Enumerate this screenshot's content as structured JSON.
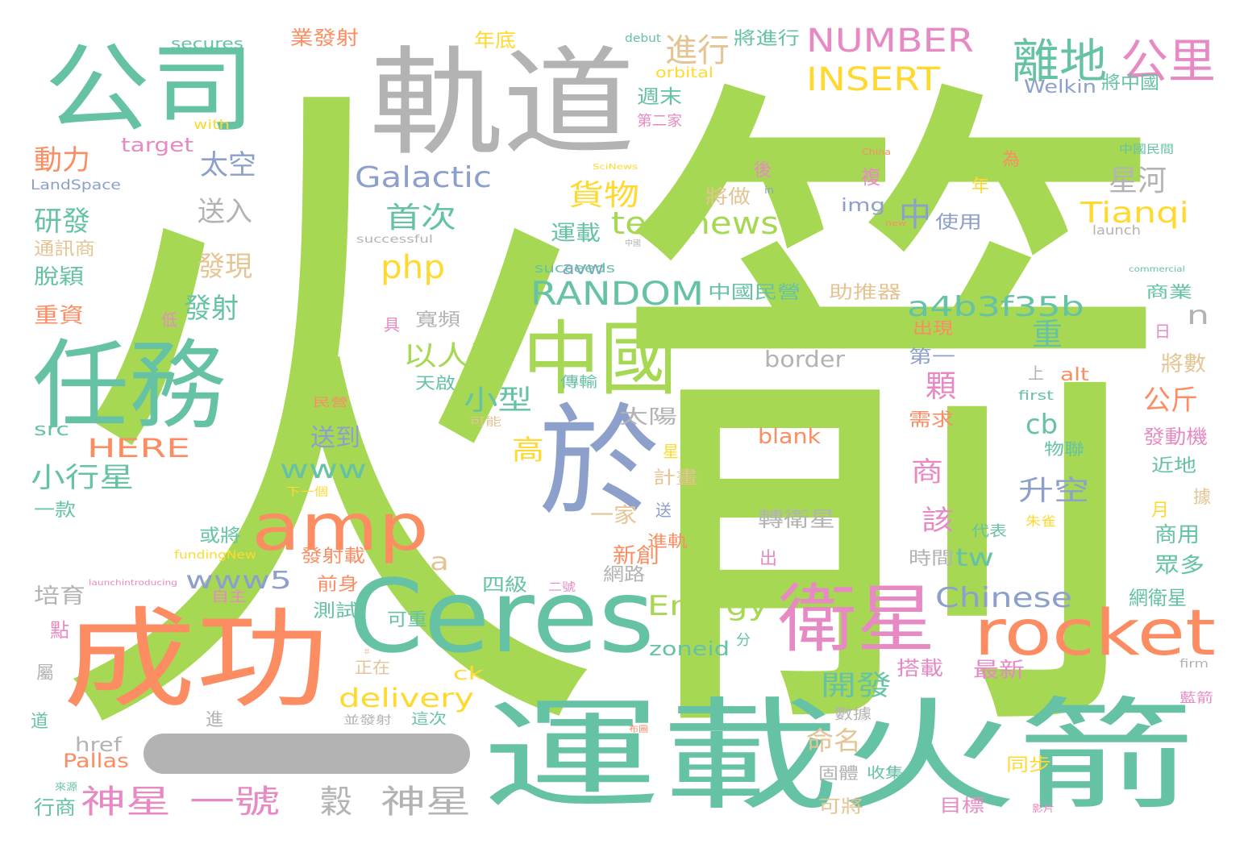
{
  "palette": {
    "green": "#a6d854",
    "teal": "#66c2a5",
    "orange": "#fc8d62",
    "blue": "#8da0cb",
    "pink": "#e78ac3",
    "yellow": "#ffd92f",
    "tan": "#e5c494",
    "gray": "#b3b3b3"
  },
  "words": [
    {
      "text": "火箭",
      "color": "green"
    },
    {
      "text": "軌道",
      "color": "gray"
    },
    {
      "text": "公司",
      "color": "teal"
    },
    {
      "text": "任務",
      "color": "teal"
    },
    {
      "text": "成功",
      "color": "orange"
    },
    {
      "text": "運載火箭",
      "color": "teal"
    },
    {
      "text": "Ceres",
      "color": "teal"
    },
    {
      "text": "於",
      "color": "blue"
    },
    {
      "text": "中國",
      "color": "green"
    },
    {
      "text": "amp",
      "color": "orange"
    },
    {
      "text": "衛星",
      "color": "pink"
    },
    {
      "text": "rocket",
      "color": "orange"
    },
    {
      "text": "離地",
      "color": "teal"
    },
    {
      "text": "公里",
      "color": "pink"
    },
    {
      "text": "NUMBER",
      "color": "pink"
    },
    {
      "text": "INSERT",
      "color": "yellow"
    },
    {
      "text": "進行",
      "color": "tan"
    },
    {
      "text": "Galactic",
      "color": "blue"
    },
    {
      "text": "technews",
      "color": "green"
    },
    {
      "text": "RANDOM",
      "color": "teal"
    },
    {
      "text": "a4b3f35b",
      "color": "teal"
    },
    {
      "text": "php",
      "color": "yellow"
    },
    {
      "text": "Tianqi",
      "color": "yellow"
    },
    {
      "text": "星河",
      "color": "gray"
    },
    {
      "text": "貨物",
      "color": "yellow"
    },
    {
      "text": "首次",
      "color": "teal"
    },
    {
      "text": "中",
      "color": "blue"
    },
    {
      "text": "太空",
      "color": "blue"
    },
    {
      "text": "動力",
      "color": "orange"
    },
    {
      "text": "研發",
      "color": "teal"
    },
    {
      "text": "送入",
      "color": "gray"
    },
    {
      "text": "發現",
      "color": "tan"
    },
    {
      "text": "發射",
      "color": "teal"
    },
    {
      "text": "以人類",
      "color": "green"
    },
    {
      "text": "小型",
      "color": "teal"
    },
    {
      "text": "重",
      "color": "teal"
    },
    {
      "text": "顆",
      "color": "pink"
    },
    {
      "text": "n",
      "color": "gray"
    },
    {
      "text": "公斤",
      "color": "orange"
    },
    {
      "text": "cb",
      "color": "teal"
    },
    {
      "text": "HERE",
      "color": "orange"
    },
    {
      "text": "小行星",
      "color": "teal"
    },
    {
      "text": "高",
      "color": "yellow"
    },
    {
      "text": "www",
      "color": "teal"
    },
    {
      "text": "送到",
      "color": "blue"
    },
    {
      "text": "商",
      "color": "pink"
    },
    {
      "text": "升空",
      "color": "blue"
    },
    {
      "text": "該",
      "color": "pink"
    },
    {
      "text": "www5",
      "color": "blue"
    },
    {
      "text": "a",
      "color": "tan"
    },
    {
      "text": "tw",
      "color": "teal"
    },
    {
      "text": "Chinese",
      "color": "blue"
    },
    {
      "text": "Energy",
      "color": "green"
    },
    {
      "text": "開發",
      "color": "teal"
    },
    {
      "text": "delivery",
      "color": "yellow"
    },
    {
      "text": "命名",
      "color": "tan"
    },
    {
      "text": "神星",
      "color": "pink"
    },
    {
      "text": "一號",
      "color": "pink"
    },
    {
      "text": "穀",
      "color": "gray"
    },
    {
      "text": "神星",
      "color": "gray"
    },
    {
      "text": "border",
      "color": "gray"
    },
    {
      "text": "blank",
      "color": "orange"
    },
    {
      "text": "轉衛星",
      "color": "gray"
    },
    {
      "text": "新創",
      "color": "orange"
    },
    {
      "text": "一家",
      "color": "tan"
    },
    {
      "text": "zoneid",
      "color": "teal"
    },
    {
      "text": "最新",
      "color": "pink"
    },
    {
      "text": "網衛星",
      "color": "teal"
    },
    {
      "text": "商用",
      "color": "teal"
    },
    {
      "text": "眾多",
      "color": "teal"
    },
    {
      "text": "發動機",
      "color": "pink"
    },
    {
      "text": "將數",
      "color": "tan"
    },
    {
      "text": "通訊商",
      "color": "tan"
    },
    {
      "text": "脫穎",
      "color": "teal"
    },
    {
      "text": "重資",
      "color": "orange"
    },
    {
      "text": "href",
      "color": "gray"
    },
    {
      "text": "Pallas",
      "color": "orange"
    },
    {
      "text": "培育",
      "color": "gray"
    },
    {
      "text": "行商",
      "color": "teal"
    },
    {
      "text": "src",
      "color": "teal"
    },
    {
      "text": "一款",
      "color": "teal"
    },
    {
      "text": "點",
      "color": "pink"
    },
    {
      "text": "屬",
      "color": "gray"
    },
    {
      "text": "道",
      "color": "teal"
    },
    {
      "text": "進",
      "color": "gray"
    },
    {
      "text": "LandSpace",
      "color": "blue"
    },
    {
      "text": "target",
      "color": "pink"
    },
    {
      "text": "with",
      "color": "yellow"
    },
    {
      "text": "secures",
      "color": "teal"
    },
    {
      "text": "業發射",
      "color": "orange"
    },
    {
      "text": "年底",
      "color": "yellow"
    },
    {
      "text": "debut",
      "color": "teal"
    },
    {
      "text": "將進行",
      "color": "teal"
    },
    {
      "text": "Welkin",
      "color": "blue"
    },
    {
      "text": "將中國",
      "color": "teal"
    },
    {
      "text": "orbital",
      "color": "yellow"
    },
    {
      "text": "週末",
      "color": "teal"
    },
    {
      "text": "第二家",
      "color": "pink"
    },
    {
      "text": "後",
      "color": "pink"
    },
    {
      "text": "將做",
      "color": "tan"
    },
    {
      "text": "複",
      "color": "pink"
    },
    {
      "text": "年",
      "color": "yellow"
    },
    {
      "text": "為",
      "color": "orange"
    },
    {
      "text": "中國民間",
      "color": "teal"
    },
    {
      "text": "img",
      "color": "blue"
    },
    {
      "text": "使用",
      "color": "blue"
    },
    {
      "text": "launch",
      "color": "gray"
    },
    {
      "text": "運載",
      "color": "teal"
    },
    {
      "text": "avw",
      "color": "blue"
    },
    {
      "text": "successful",
      "color": "gray"
    },
    {
      "text": "succeeds",
      "color": "teal"
    },
    {
      "text": "中國民營",
      "color": "teal"
    },
    {
      "text": "助推器",
      "color": "tan"
    },
    {
      "text": "商業",
      "color": "teal"
    },
    {
      "text": "寬頻",
      "color": "gray"
    },
    {
      "text": "具",
      "color": "pink"
    },
    {
      "text": "低",
      "color": "pink"
    },
    {
      "text": "出現",
      "color": "orange"
    },
    {
      "text": "日",
      "color": "pink"
    },
    {
      "text": "第一",
      "color": "blue"
    },
    {
      "text": "alt",
      "color": "orange"
    },
    {
      "text": "上",
      "color": "gray"
    },
    {
      "text": "天啟",
      "color": "teal"
    },
    {
      "text": "傳輸",
      "color": "teal"
    },
    {
      "text": "first",
      "color": "teal"
    },
    {
      "text": "民營",
      "color": "orange"
    },
    {
      "text": "可能",
      "color": "tan"
    },
    {
      "text": "太陽",
      "color": "gray"
    },
    {
      "text": "需求",
      "color": "orange"
    },
    {
      "text": "物聯",
      "color": "teal"
    },
    {
      "text": "近地",
      "color": "teal"
    },
    {
      "text": "星",
      "color": "yellow"
    },
    {
      "text": "計畫",
      "color": "tan"
    },
    {
      "text": "下一個",
      "color": "yellow"
    },
    {
      "text": "送",
      "color": "blue"
    },
    {
      "text": "據",
      "color": "tan"
    },
    {
      "text": "月",
      "color": "yellow"
    },
    {
      "text": "朱雀",
      "color": "yellow"
    },
    {
      "text": "或將",
      "color": "teal"
    },
    {
      "text": "進軌",
      "color": "orange"
    },
    {
      "text": "代表",
      "color": "teal"
    },
    {
      "text": "出",
      "color": "pink"
    },
    {
      "text": "時間",
      "color": "gray"
    },
    {
      "text": "發射載",
      "color": "orange"
    },
    {
      "text": "fundingNew",
      "color": "yellow"
    },
    {
      "text": "前身",
      "color": "orange"
    },
    {
      "text": "網路",
      "color": "gray"
    },
    {
      "text": "四級",
      "color": "teal"
    },
    {
      "text": "二號",
      "color": "pink"
    },
    {
      "text": "launchintroducing",
      "color": "pink"
    },
    {
      "text": "自主",
      "color": "pink"
    },
    {
      "text": "測試",
      "color": "teal"
    },
    {
      "text": "可重",
      "color": "teal"
    },
    {
      "text": "分",
      "color": "teal"
    },
    {
      "text": "正在",
      "color": "tan"
    },
    {
      "text": "ck",
      "color": "yellow"
    },
    {
      "text": "搭載",
      "color": "pink"
    },
    {
      "text": "firm",
      "color": "gray"
    },
    {
      "text": "藍箭",
      "color": "pink"
    },
    {
      "text": "並發射",
      "color": "gray"
    },
    {
      "text": "這次",
      "color": "teal"
    },
    {
      "text": "數據",
      "color": "gray"
    },
    {
      "text": "固體",
      "color": "gray"
    },
    {
      "text": "收集",
      "color": "teal"
    },
    {
      "text": "同步",
      "color": "yellow"
    },
    {
      "text": "可將",
      "color": "tan"
    },
    {
      "text": "目標",
      "color": "pink"
    },
    {
      "text": "影片",
      "color": "pink"
    },
    {
      "text": "來源",
      "color": "teal"
    },
    {
      "text": "China",
      "color": "orange"
    },
    {
      "text": "SciNews",
      "color": "yellow"
    },
    {
      "text": "in",
      "color": "blue"
    },
    {
      "text": "new",
      "color": "orange"
    },
    {
      "text": "commercial",
      "color": "teal"
    },
    {
      "text": "中國",
      "color": "gray"
    },
    {
      "text": "布圖",
      "color": "orange"
    },
    {
      "text": "＃",
      "color": "tan"
    }
  ]
}
